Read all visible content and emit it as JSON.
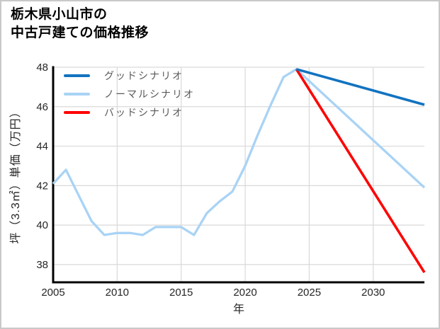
{
  "window": {
    "background": "#ffffff",
    "border_color": "#c9c9c9"
  },
  "title": {
    "line1": "栃木県小山市の",
    "line2": "中古戸建ての価格推移"
  },
  "chart_data": {
    "type": "line",
    "title": "栃木県小山市の中古戸建ての価格推移",
    "xlabel": "年",
    "ylabel": "坪（3.3㎡）単価（万円）",
    "xlim": [
      2005,
      2034
    ],
    "ylim": [
      37.1,
      48
    ],
    "x_ticks": [
      2005,
      2010,
      2015,
      2020,
      2025,
      2030
    ],
    "y_ticks": [
      38,
      40,
      42,
      44,
      46,
      48
    ],
    "grid": true,
    "grid_color": "#d9d9d9",
    "axis_color": "#000000",
    "tick_label_color": "#262626",
    "legend": {
      "position": "upper-left",
      "text_color": "#595959"
    },
    "series": [
      {
        "name": "グッドシナリオ",
        "color": "#1273c0",
        "line_width": 3.6,
        "x": [
          2024,
          2034
        ],
        "values": [
          47.9,
          46.1
        ]
      },
      {
        "name": "ノーマルシナリオ",
        "color": "#a9d3f5",
        "line_width": 3.3,
        "x": [
          2005,
          2006,
          2007,
          2008,
          2009,
          2010,
          2011,
          2012,
          2013,
          2014,
          2015,
          2016,
          2017,
          2018,
          2019,
          2020,
          2021,
          2022,
          2023,
          2024,
          2034
        ],
        "values": [
          42.1,
          42.8,
          41.5,
          40.2,
          39.5,
          39.6,
          39.6,
          39.5,
          39.9,
          39.9,
          39.9,
          39.5,
          40.6,
          41.2,
          41.7,
          43.0,
          44.6,
          46.1,
          47.5,
          47.9,
          41.9
        ]
      },
      {
        "name": "バッドシナリオ",
        "color": "#ff0000",
        "line_width": 3.6,
        "x": [
          2024,
          2034
        ],
        "values": [
          47.9,
          37.6
        ]
      }
    ]
  }
}
